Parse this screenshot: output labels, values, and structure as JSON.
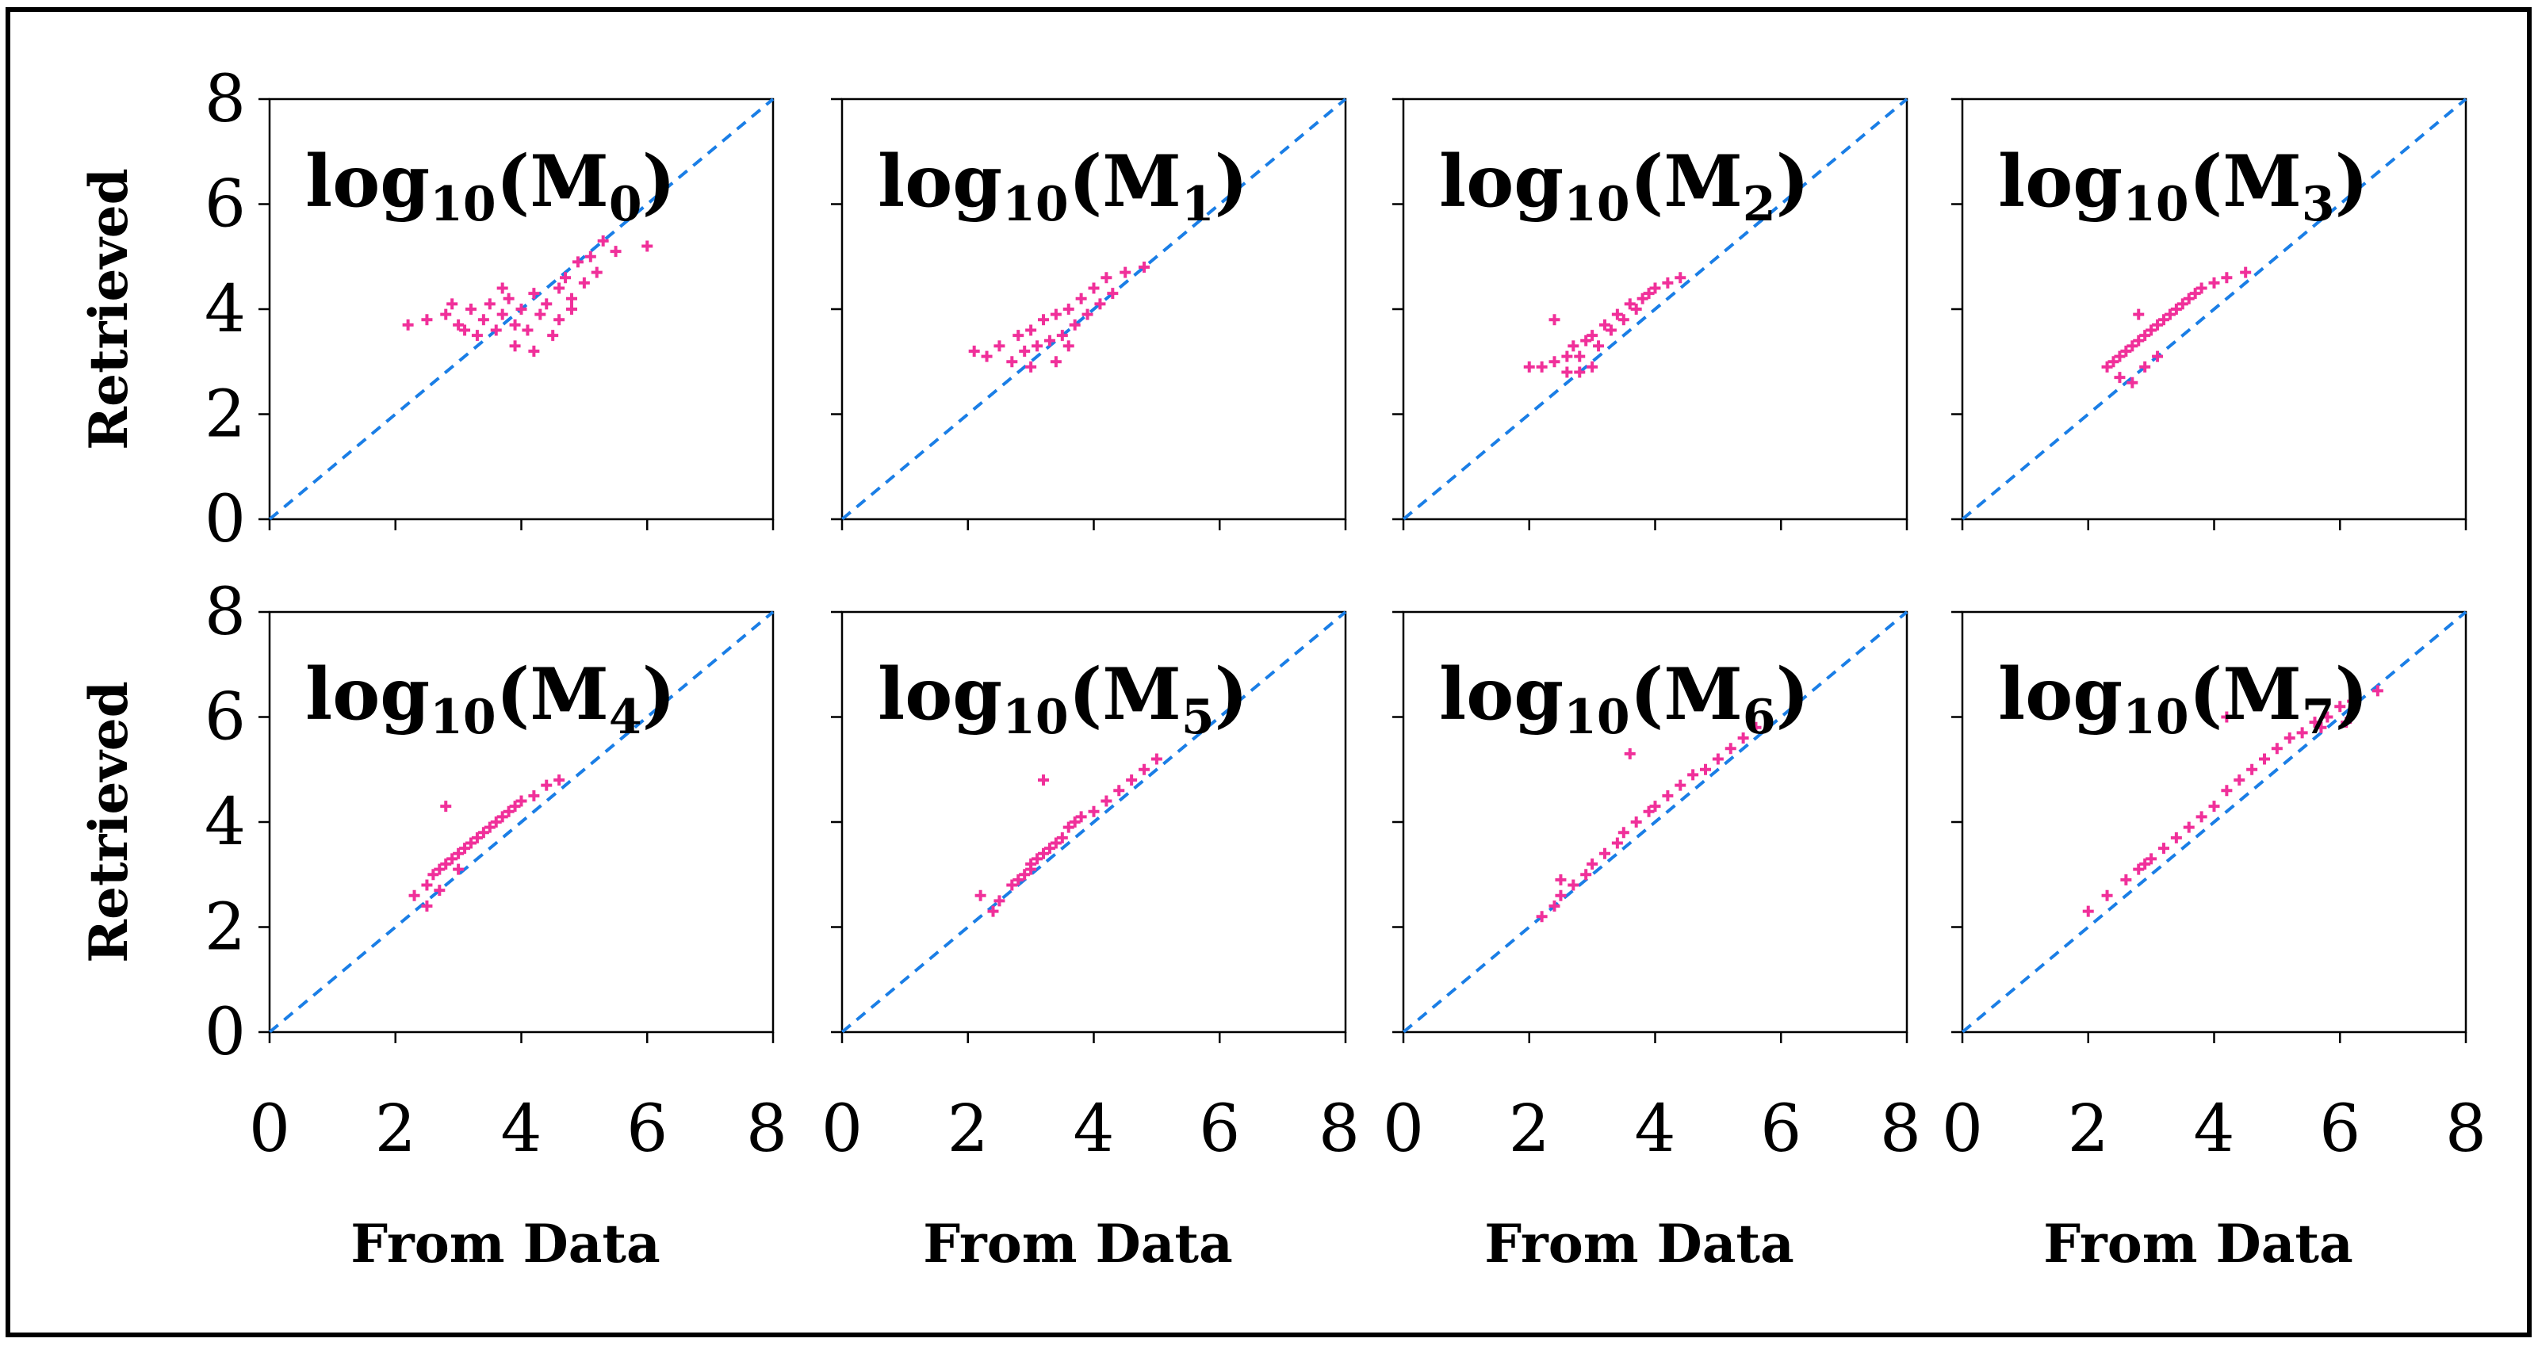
{
  "chart_data": [
    {
      "type": "scatter",
      "title": "log10(M0)",
      "title_parts": {
        "prefix": "log",
        "base": "10",
        "open": "(M",
        "sub": "0",
        "close": ")"
      },
      "xlabel": "",
      "ylabel": "Retrieved",
      "xlim": [
        0,
        8
      ],
      "ylim": [
        0,
        8
      ],
      "xticks": [
        0,
        2,
        4,
        6,
        8
      ],
      "yticks": [
        0,
        2,
        4,
        6,
        8
      ],
      "show_x_ticklabels": false,
      "show_y_ticklabels": true,
      "reference_line": "y = x",
      "series": [
        {
          "name": "retrieved",
          "color": "#f0309a",
          "points": [
            [
              2.2,
              3.7
            ],
            [
              2.5,
              3.8
            ],
            [
              2.8,
              3.9
            ],
            [
              3.0,
              3.7
            ],
            [
              3.2,
              4.0
            ],
            [
              3.4,
              3.8
            ],
            [
              3.5,
              4.1
            ],
            [
              3.6,
              3.6
            ],
            [
              3.7,
              3.9
            ],
            [
              3.8,
              4.2
            ],
            [
              3.9,
              3.7
            ],
            [
              4.0,
              4.0
            ],
            [
              4.1,
              3.6
            ],
            [
              4.2,
              4.3
            ],
            [
              4.3,
              3.9
            ],
            [
              4.4,
              4.1
            ],
            [
              4.5,
              3.5
            ],
            [
              4.6,
              4.4
            ],
            [
              4.7,
              4.6
            ],
            [
              4.8,
              4.2
            ],
            [
              4.9,
              4.9
            ],
            [
              5.0,
              4.5
            ],
            [
              5.1,
              5.0
            ],
            [
              5.2,
              4.7
            ],
            [
              5.3,
              5.3
            ],
            [
              5.5,
              5.1
            ],
            [
              6.0,
              5.2
            ],
            [
              3.3,
              3.5
            ],
            [
              3.9,
              3.3
            ],
            [
              4.2,
              3.2
            ],
            [
              2.9,
              4.1
            ],
            [
              3.1,
              3.6
            ],
            [
              4.6,
              3.8
            ],
            [
              4.8,
              4.0
            ],
            [
              3.7,
              4.4
            ]
          ]
        }
      ]
    },
    {
      "type": "scatter",
      "title": "log10(M1)",
      "title_parts": {
        "prefix": "log",
        "base": "10",
        "open": "(M",
        "sub": "1",
        "close": ")"
      },
      "xlabel": "",
      "ylabel": "",
      "xlim": [
        0,
        8
      ],
      "ylim": [
        0,
        8
      ],
      "xticks": [
        0,
        2,
        4,
        6,
        8
      ],
      "yticks": [
        0,
        2,
        4,
        6,
        8
      ],
      "show_x_ticklabels": false,
      "show_y_ticklabels": false,
      "reference_line": "y = x",
      "series": [
        {
          "name": "retrieved",
          "color": "#f0309a",
          "points": [
            [
              2.1,
              3.2
            ],
            [
              2.3,
              3.1
            ],
            [
              2.5,
              3.3
            ],
            [
              2.7,
              3.0
            ],
            [
              2.8,
              3.5
            ],
            [
              2.9,
              3.2
            ],
            [
              3.0,
              3.6
            ],
            [
              3.1,
              3.3
            ],
            [
              3.2,
              3.8
            ],
            [
              3.3,
              3.4
            ],
            [
              3.4,
              3.9
            ],
            [
              3.5,
              3.5
            ],
            [
              3.6,
              4.0
            ],
            [
              3.7,
              3.7
            ],
            [
              3.8,
              4.2
            ],
            [
              3.9,
              3.9
            ],
            [
              4.0,
              4.4
            ],
            [
              4.1,
              4.1
            ],
            [
              4.2,
              4.6
            ],
            [
              4.3,
              4.3
            ],
            [
              4.5,
              4.7
            ],
            [
              4.8,
              4.8
            ],
            [
              3.0,
              2.9
            ],
            [
              3.4,
              3.0
            ],
            [
              3.6,
              3.3
            ]
          ]
        }
      ]
    },
    {
      "type": "scatter",
      "title": "log10(M2)",
      "title_parts": {
        "prefix": "log",
        "base": "10",
        "open": "(M",
        "sub": "2",
        "close": ")"
      },
      "xlabel": "",
      "ylabel": "",
      "xlim": [
        0,
        8
      ],
      "ylim": [
        0,
        8
      ],
      "xticks": [
        0,
        2,
        4,
        6,
        8
      ],
      "yticks": [
        0,
        2,
        4,
        6,
        8
      ],
      "show_x_ticklabels": false,
      "show_y_ticklabels": false,
      "reference_line": "y = x",
      "series": [
        {
          "name": "retrieved",
          "color": "#f0309a",
          "points": [
            [
              2.0,
              2.9
            ],
            [
              2.2,
              2.9
            ],
            [
              2.4,
              3.0
            ],
            [
              2.6,
              3.1
            ],
            [
              2.7,
              3.3
            ],
            [
              2.8,
              3.1
            ],
            [
              2.9,
              3.4
            ],
            [
              3.0,
              3.5
            ],
            [
              3.1,
              3.3
            ],
            [
              3.2,
              3.7
            ],
            [
              3.3,
              3.6
            ],
            [
              3.4,
              3.9
            ],
            [
              3.5,
              3.8
            ],
            [
              3.6,
              4.1
            ],
            [
              3.7,
              4.0
            ],
            [
              3.8,
              4.2
            ],
            [
              3.9,
              4.3
            ],
            [
              4.0,
              4.4
            ],
            [
              4.2,
              4.5
            ],
            [
              4.4,
              4.6
            ],
            [
              2.4,
              3.8
            ],
            [
              2.8,
              2.8
            ],
            [
              3.0,
              2.9
            ],
            [
              2.6,
              2.8
            ]
          ]
        }
      ]
    },
    {
      "type": "scatter",
      "title": "log10(M3)",
      "title_parts": {
        "prefix": "log",
        "base": "10",
        "open": "(M",
        "sub": "3",
        "close": ")"
      },
      "xlabel": "",
      "ylabel": "",
      "xlim": [
        0,
        8
      ],
      "ylim": [
        0,
        8
      ],
      "xticks": [
        0,
        2,
        4,
        6,
        8
      ],
      "yticks": [
        0,
        2,
        4,
        6,
        8
      ],
      "show_x_ticklabels": false,
      "show_y_ticklabels": false,
      "reference_line": "y = x",
      "series": [
        {
          "name": "retrieved",
          "color": "#f0309a",
          "points": [
            [
              2.3,
              2.9
            ],
            [
              2.4,
              3.0
            ],
            [
              2.5,
              2.7
            ],
            [
              2.5,
              3.1
            ],
            [
              2.6,
              3.2
            ],
            [
              2.7,
              3.3
            ],
            [
              2.7,
              2.6
            ],
            [
              2.8,
              3.4
            ],
            [
              2.9,
              3.5
            ],
            [
              3.0,
              3.6
            ],
            [
              3.1,
              3.7
            ],
            [
              3.2,
              3.8
            ],
            [
              3.3,
              3.9
            ],
            [
              3.4,
              4.0
            ],
            [
              3.5,
              4.1
            ],
            [
              3.6,
              4.2
            ],
            [
              3.7,
              4.3
            ],
            [
              3.8,
              4.4
            ],
            [
              4.0,
              4.5
            ],
            [
              4.2,
              4.6
            ],
            [
              4.5,
              4.7
            ],
            [
              2.9,
              2.9
            ],
            [
              3.1,
              3.1
            ],
            [
              2.8,
              3.9
            ]
          ]
        }
      ]
    },
    {
      "type": "scatter",
      "title": "log10(M4)",
      "title_parts": {
        "prefix": "log",
        "base": "10",
        "open": "(M",
        "sub": "4",
        "close": ")"
      },
      "xlabel": "From Data",
      "ylabel": "Retrieved",
      "xlim": [
        0,
        8
      ],
      "ylim": [
        0,
        8
      ],
      "xticks": [
        0,
        2,
        4,
        6,
        8
      ],
      "yticks": [
        0,
        2,
        4,
        6,
        8
      ],
      "show_x_ticklabels": true,
      "show_y_ticklabels": true,
      "reference_line": "y = x",
      "series": [
        {
          "name": "retrieved",
          "color": "#f0309a",
          "points": [
            [
              2.3,
              2.6
            ],
            [
              2.5,
              2.4
            ],
            [
              2.5,
              2.8
            ],
            [
              2.6,
              3.0
            ],
            [
              2.7,
              3.1
            ],
            [
              2.8,
              3.2
            ],
            [
              2.9,
              3.3
            ],
            [
              3.0,
              3.4
            ],
            [
              3.1,
              3.5
            ],
            [
              3.2,
              3.6
            ],
            [
              3.3,
              3.7
            ],
            [
              3.4,
              3.8
            ],
            [
              3.5,
              3.9
            ],
            [
              3.6,
              4.0
            ],
            [
              3.7,
              4.1
            ],
            [
              3.8,
              4.2
            ],
            [
              3.9,
              4.3
            ],
            [
              4.0,
              4.4
            ],
            [
              4.2,
              4.5
            ],
            [
              4.4,
              4.7
            ],
            [
              4.6,
              4.8
            ],
            [
              2.8,
              4.3
            ],
            [
              2.7,
              2.7
            ],
            [
              3.0,
              3.1
            ]
          ]
        }
      ]
    },
    {
      "type": "scatter",
      "title": "log10(M5)",
      "title_parts": {
        "prefix": "log",
        "base": "10",
        "open": "(M",
        "sub": "5",
        "close": ")"
      },
      "xlabel": "From Data",
      "ylabel": "",
      "xlim": [
        0,
        8
      ],
      "ylim": [
        0,
        8
      ],
      "xticks": [
        0,
        2,
        4,
        6,
        8
      ],
      "yticks": [
        0,
        2,
        4,
        6,
        8
      ],
      "show_x_ticklabels": true,
      "show_y_ticklabels": true,
      "reference_line": "y = x",
      "series": [
        {
          "name": "retrieved",
          "color": "#f0309a",
          "points": [
            [
              2.2,
              2.6
            ],
            [
              2.4,
              2.3
            ],
            [
              2.5,
              2.5
            ],
            [
              2.7,
              2.8
            ],
            [
              2.8,
              2.9
            ],
            [
              2.9,
              3.0
            ],
            [
              3.0,
              3.2
            ],
            [
              3.1,
              3.3
            ],
            [
              3.2,
              3.4
            ],
            [
              3.3,
              3.5
            ],
            [
              3.4,
              3.6
            ],
            [
              3.5,
              3.7
            ],
            [
              3.6,
              3.9
            ],
            [
              3.7,
              4.0
            ],
            [
              3.8,
              4.1
            ],
            [
              4.0,
              4.2
            ],
            [
              4.2,
              4.4
            ],
            [
              4.4,
              4.6
            ],
            [
              4.6,
              4.8
            ],
            [
              4.8,
              5.0
            ],
            [
              5.0,
              5.2
            ],
            [
              3.2,
              4.8
            ],
            [
              3.0,
              3.1
            ]
          ]
        }
      ]
    },
    {
      "type": "scatter",
      "title": "log10(M6)",
      "title_parts": {
        "prefix": "log",
        "base": "10",
        "open": "(M",
        "sub": "6",
        "close": ")"
      },
      "xlabel": "From Data",
      "ylabel": "",
      "xlim": [
        0,
        8
      ],
      "ylim": [
        0,
        8
      ],
      "xticks": [
        0,
        2,
        4,
        6,
        8
      ],
      "yticks": [
        0,
        2,
        4,
        6,
        8
      ],
      "show_x_ticklabels": true,
      "show_y_ticklabels": true,
      "reference_line": "y = x",
      "series": [
        {
          "name": "retrieved",
          "color": "#f0309a",
          "points": [
            [
              2.2,
              2.2
            ],
            [
              2.4,
              2.4
            ],
            [
              2.5,
              2.6
            ],
            [
              2.7,
              2.8
            ],
            [
              2.9,
              3.0
            ],
            [
              3.0,
              3.2
            ],
            [
              3.2,
              3.4
            ],
            [
              3.4,
              3.6
            ],
            [
              3.5,
              3.8
            ],
            [
              3.7,
              4.0
            ],
            [
              3.9,
              4.2
            ],
            [
              4.0,
              4.3
            ],
            [
              4.2,
              4.5
            ],
            [
              4.4,
              4.7
            ],
            [
              4.6,
              4.9
            ],
            [
              4.8,
              5.0
            ],
            [
              5.0,
              5.2
            ],
            [
              5.2,
              5.4
            ],
            [
              5.4,
              5.6
            ],
            [
              5.6,
              5.8
            ],
            [
              3.6,
              5.3
            ],
            [
              2.5,
              2.9
            ]
          ]
        }
      ]
    },
    {
      "type": "scatter",
      "title": "log10(M7)",
      "title_parts": {
        "prefix": "log",
        "base": "10",
        "open": "(M",
        "sub": "7",
        "close": ")"
      },
      "xlabel": "From Data",
      "ylabel": "",
      "xlim": [
        0,
        8
      ],
      "ylim": [
        0,
        8
      ],
      "xticks": [
        0,
        2,
        4,
        6,
        8
      ],
      "yticks": [
        0,
        2,
        4,
        6,
        8
      ],
      "show_x_ticklabels": true,
      "show_y_ticklabels": true,
      "reference_line": "y = x",
      "series": [
        {
          "name": "retrieved",
          "color": "#f0309a",
          "points": [
            [
              2.0,
              2.3
            ],
            [
              2.3,
              2.6
            ],
            [
              2.6,
              2.9
            ],
            [
              2.8,
              3.1
            ],
            [
              3.0,
              3.3
            ],
            [
              3.2,
              3.5
            ],
            [
              3.4,
              3.7
            ],
            [
              3.6,
              3.9
            ],
            [
              3.8,
              4.1
            ],
            [
              4.0,
              4.3
            ],
            [
              4.2,
              4.6
            ],
            [
              4.4,
              4.8
            ],
            [
              4.6,
              5.0
            ],
            [
              4.8,
              5.2
            ],
            [
              5.0,
              5.4
            ],
            [
              5.2,
              5.6
            ],
            [
              5.4,
              5.7
            ],
            [
              5.6,
              5.9
            ],
            [
              5.8,
              6.0
            ],
            [
              6.0,
              6.2
            ],
            [
              6.2,
              6.3
            ],
            [
              6.6,
              6.5
            ],
            [
              4.2,
              6.0
            ],
            [
              2.9,
              3.2
            ],
            [
              5.7,
              5.8
            ],
            [
              6.1,
              5.9
            ]
          ]
        }
      ]
    }
  ]
}
